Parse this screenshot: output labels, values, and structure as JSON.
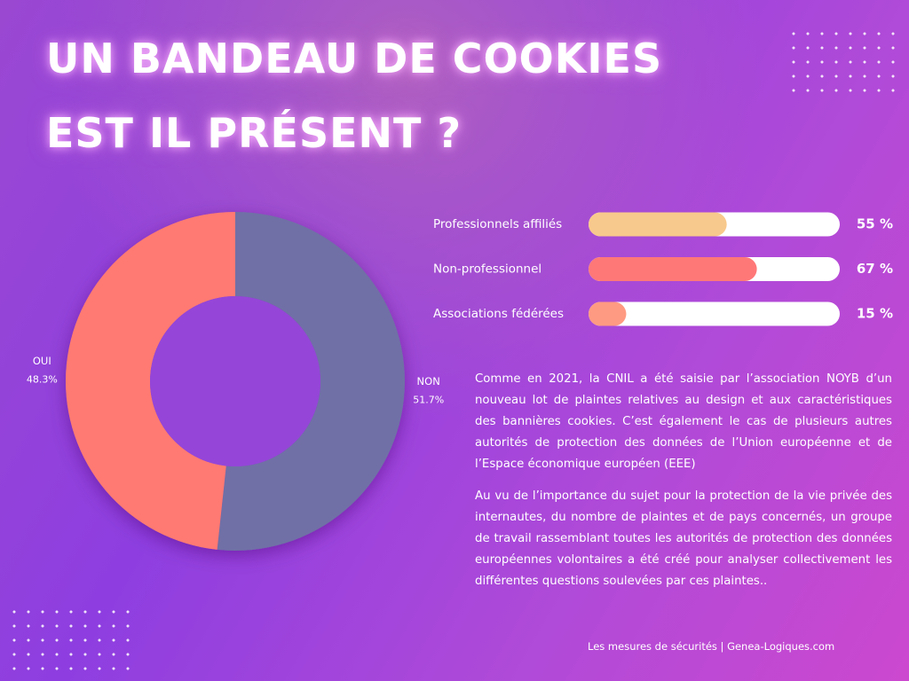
{
  "title": "UN BANDEAU DE COOKIES EST IL PRÉSENT ?",
  "chart_data": [
    {
      "type": "donut",
      "categories": [
        "NON",
        "OUI"
      ],
      "values": [
        51.7,
        48.3
      ],
      "value_labels": [
        "51.7%",
        "48.3%"
      ],
      "colors": [
        "#6f6fa6",
        "#ff7a72"
      ]
    },
    {
      "type": "hbar",
      "categories": [
        "Professionnels affiliés",
        "Non-professionnel",
        "Associations fédérées"
      ],
      "values": [
        55,
        67,
        15
      ],
      "value_labels": [
        "55 %",
        "67 %",
        "15 %"
      ],
      "colors": [
        "#f8c98c",
        "#ff7878",
        "#ff9a82"
      ],
      "xlim": [
        0,
        100
      ]
    }
  ],
  "paragraphs": [
    "Comme en 2021, la CNIL a été saisie par l’association NOYB d’un nouveau lot de plaintes relatives au design et aux caractéristiques des bannières cookies. C’est également le cas de plusieurs autres autorités de protection des données de l’Union européenne et de l’Espace économique européen (EEE)",
    "Au vu de l’importance du sujet pour la protection de la vie privée des internautes, du nombre de plaintes et de pays concernés, un groupe de travail rassemblant toutes les autorités de protection des données européennes volontaires a été créé pour analyser collectivement les différentes questions soulevées par ces plaintes.."
  ],
  "footer": "Les mesures de sécurités | Genea-Logiques.com"
}
